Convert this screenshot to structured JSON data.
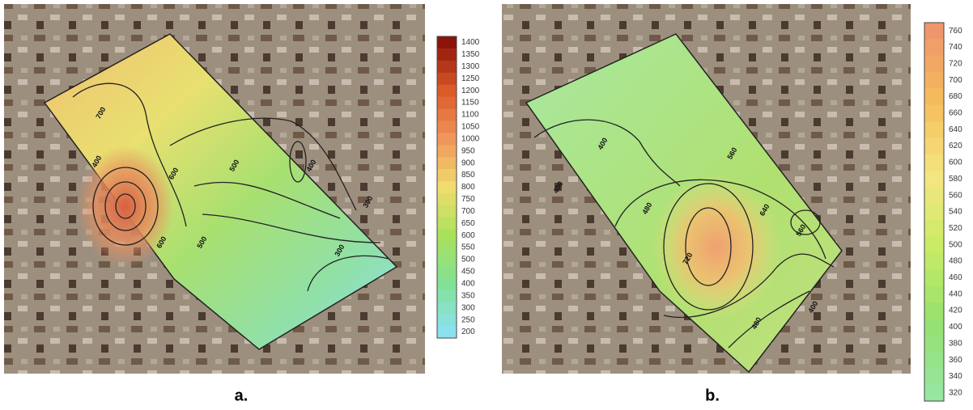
{
  "panels": [
    {
      "label": "a.",
      "colorbar": [
        "1400",
        "1350",
        "1300",
        "1250",
        "1200",
        "1150",
        "1100",
        "1050",
        "1000",
        "950",
        "900",
        "850",
        "800",
        "750",
        "700",
        "650",
        "600",
        "550",
        "500",
        "450",
        "400",
        "350",
        "300",
        "250",
        "200"
      ],
      "contour_labels": [
        "700",
        "600",
        "500",
        "400",
        "300",
        "500",
        "600",
        "400",
        "300"
      ]
    },
    {
      "label": "b.",
      "colorbar": [
        "760",
        "740",
        "720",
        "700",
        "680",
        "660",
        "640",
        "620",
        "600",
        "580",
        "560",
        "540",
        "520",
        "500",
        "480",
        "460",
        "440",
        "420",
        "400",
        "380",
        "360",
        "340",
        "320"
      ],
      "contour_labels": [
        "400",
        "480",
        "400",
        "720",
        "640",
        "560",
        "480",
        "400",
        "560"
      ]
    }
  ]
}
